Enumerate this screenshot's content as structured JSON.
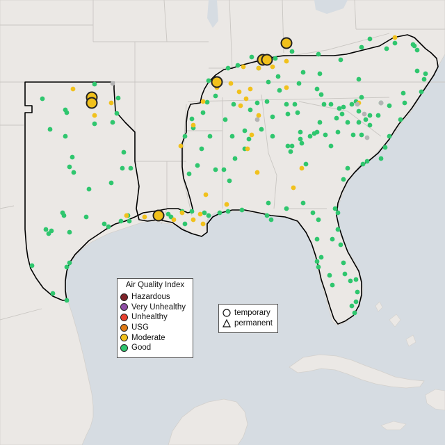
{
  "legend_aqi": {
    "title": "Air Quality Index",
    "items": [
      {
        "label": "Hazardous",
        "color": "#7e2329"
      },
      {
        "label": "Very Unhealthy",
        "color": "#8f4fa6"
      },
      {
        "label": "Unhealthy",
        "color": "#e8412f"
      },
      {
        "label": "USG",
        "color": "#e07b16"
      },
      {
        "label": "Moderate",
        "color": "#f1c11c"
      },
      {
        "label": "Good",
        "color": "#2fc66e"
      }
    ]
  },
  "legend_type": {
    "items": [
      {
        "label": "temporary",
        "symbol": "circle"
      },
      {
        "label": "permanent",
        "symbol": "triangle"
      }
    ]
  },
  "colors": {
    "water": "#d6dce2",
    "land": "#ebe8e5",
    "boundary": "#c9c6c2",
    "region_outline": "#000000",
    "good": "#2fc66e",
    "moderate": "#f1c11c",
    "no_data": "#b4b4b4",
    "marker_outline": "#222222"
  }
}
